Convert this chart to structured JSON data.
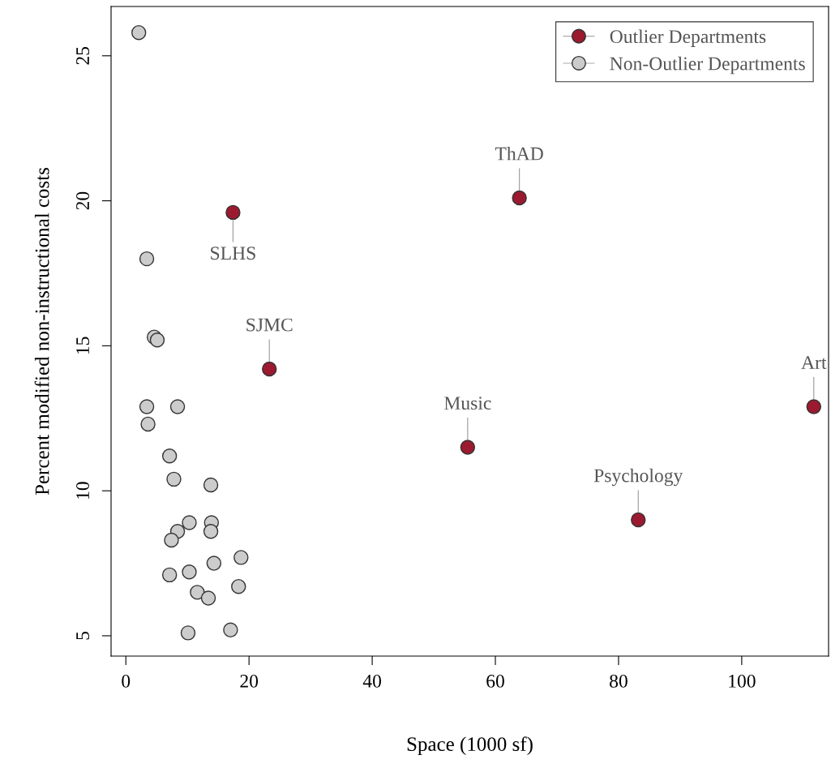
{
  "chart_data": {
    "type": "scatter",
    "xlabel": "Space (1000 sf)",
    "ylabel": "Percent modified non-instructional costs",
    "xlim": [
      -2.4,
      114.1
    ],
    "ylim": [
      4.3,
      26.7
    ],
    "xticks": [
      0,
      20,
      40,
      60,
      80,
      100
    ],
    "yticks": [
      5,
      10,
      15,
      20,
      25
    ],
    "grid": false,
    "legend": "top right",
    "marker": "circle",
    "series": [
      {
        "name": "Outlier Departments",
        "color": "#9b1a30",
        "x": [
          63.9,
          17.4,
          23.3,
          111.7,
          55.5,
          83.2
        ],
        "values": [
          20.1,
          19.6,
          14.2,
          12.9,
          11.5,
          9.0
        ]
      },
      {
        "name": "Non-Outlier Departments",
        "color": "#cccccc",
        "x": [
          2.1,
          3.4,
          4.6,
          5.1,
          3.4,
          8.4,
          3.6,
          7.1,
          7.8,
          13.8,
          10.3,
          13.9,
          8.4,
          13.8,
          7.4,
          18.7,
          14.3,
          7.1,
          10.3,
          18.3,
          11.6,
          13.4,
          10.1,
          17.0
        ],
        "values": [
          25.8,
          18.0,
          15.3,
          15.2,
          12.9,
          12.9,
          12.3,
          11.2,
          10.4,
          10.2,
          8.9,
          8.9,
          8.6,
          8.6,
          8.3,
          7.7,
          7.5,
          7.1,
          7.2,
          6.7,
          6.5,
          6.3,
          5.1,
          5.2
        ]
      }
    ],
    "annotations": [
      {
        "text": "ThAD",
        "x": 63.9,
        "y": 20.1
      },
      {
        "text": "SLHS",
        "x": 17.4,
        "y": 19.6
      },
      {
        "text": "SJMC",
        "x": 23.3,
        "y": 14.2
      },
      {
        "text": "Art",
        "x": 111.7,
        "y": 12.9
      },
      {
        "text": "Music",
        "x": 55.5,
        "y": 11.5
      },
      {
        "text": "Psychology",
        "x": 83.2,
        "y": 9.0
      }
    ]
  }
}
